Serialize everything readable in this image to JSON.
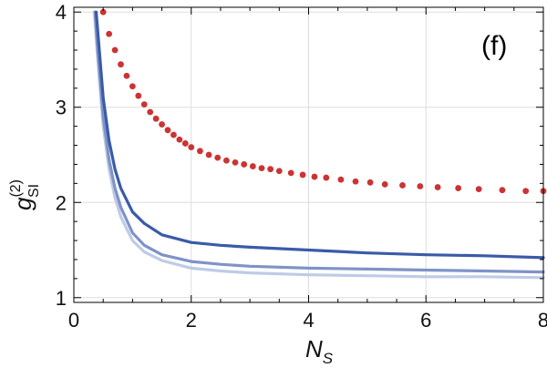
{
  "panel_label": "(f)",
  "chart_data": {
    "type": "line",
    "title": "",
    "xlabel": "N",
    "xlabel_sub": "S",
    "ylabel": "g",
    "ylabel_sup": "(2)",
    "ylabel_sub": "SI",
    "xlim": [
      0,
      8
    ],
    "ylim": [
      0.95,
      4.05
    ],
    "x_ticks": [
      0,
      2,
      4,
      6,
      8
    ],
    "x_tick_labels": [
      "0",
      "2",
      "4",
      "6",
      "8"
    ],
    "y_ticks": [
      1,
      2,
      3,
      4
    ],
    "y_tick_labels": [
      "1",
      "2",
      "3",
      "4"
    ],
    "grid": true,
    "legend": "none",
    "series": [
      {
        "style": "line",
        "color": "#bfcbe6",
        "x": [
          0.35,
          0.4,
          0.5,
          0.6,
          0.7,
          0.8,
          1.0,
          1.2,
          1.5,
          2.0,
          2.5,
          3.0,
          4.0,
          5.0,
          6.0,
          7.0,
          8.0
        ],
        "y": [
          4.0,
          3.55,
          2.8,
          2.35,
          2.05,
          1.85,
          1.6,
          1.48,
          1.39,
          1.31,
          1.28,
          1.26,
          1.24,
          1.23,
          1.22,
          1.22,
          1.21
        ]
      },
      {
        "style": "line",
        "color": "#7f93c7",
        "x": [
          0.36,
          0.4,
          0.5,
          0.6,
          0.7,
          0.8,
          1.0,
          1.2,
          1.5,
          2.0,
          2.5,
          3.0,
          4.0,
          5.0,
          6.0,
          7.0,
          8.0
        ],
        "y": [
          4.0,
          3.65,
          2.9,
          2.45,
          2.15,
          1.95,
          1.68,
          1.55,
          1.45,
          1.38,
          1.35,
          1.33,
          1.31,
          1.3,
          1.29,
          1.28,
          1.27
        ]
      },
      {
        "style": "line",
        "color": "#3a5ba8",
        "x": [
          0.38,
          0.4,
          0.5,
          0.6,
          0.7,
          0.8,
          1.0,
          1.2,
          1.5,
          2.0,
          2.5,
          3.0,
          4.0,
          5.0,
          6.0,
          7.0,
          8.0
        ],
        "y": [
          4.0,
          3.85,
          3.1,
          2.65,
          2.35,
          2.15,
          1.9,
          1.78,
          1.66,
          1.58,
          1.55,
          1.53,
          1.5,
          1.47,
          1.45,
          1.44,
          1.42
        ]
      },
      {
        "style": "dots",
        "color": "#cc3333",
        "x": [
          0.5,
          0.6,
          0.7,
          0.8,
          0.9,
          1.0,
          1.1,
          1.2,
          1.3,
          1.4,
          1.5,
          1.6,
          1.7,
          1.8,
          1.9,
          2.0,
          2.15,
          2.3,
          2.45,
          2.6,
          2.75,
          2.9,
          3.05,
          3.2,
          3.35,
          3.5,
          3.7,
          3.9,
          4.1,
          4.3,
          4.55,
          4.8,
          5.05,
          5.3,
          5.6,
          5.9,
          6.2,
          6.55,
          6.9,
          7.3,
          7.7,
          8.0
        ],
        "y": [
          4.0,
          3.77,
          3.6,
          3.45,
          3.33,
          3.22,
          3.12,
          3.03,
          2.95,
          2.88,
          2.82,
          2.76,
          2.71,
          2.66,
          2.62,
          2.58,
          2.54,
          2.5,
          2.47,
          2.44,
          2.42,
          2.4,
          2.38,
          2.36,
          2.35,
          2.33,
          2.31,
          2.29,
          2.27,
          2.26,
          2.24,
          2.22,
          2.21,
          2.19,
          2.18,
          2.17,
          2.16,
          2.15,
          2.14,
          2.13,
          2.12,
          2.12
        ]
      }
    ]
  }
}
